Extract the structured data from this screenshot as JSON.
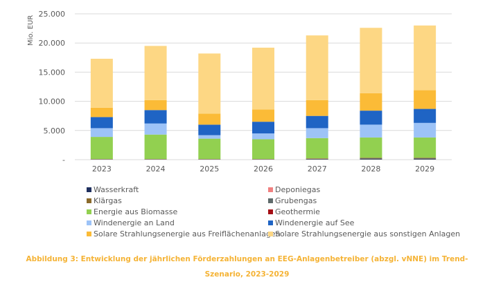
{
  "chart_data": {
    "type": "bar",
    "stacked": true,
    "title": "",
    "xlabel": "",
    "ylabel": "Mio. EUR",
    "ylim": [
      0,
      25000
    ],
    "yticks": [
      0,
      5000,
      10000,
      15000,
      20000,
      25000
    ],
    "ytick_labels": [
      "-",
      "5.000",
      "10.000",
      "15.000",
      "20.000",
      "25.000"
    ],
    "grid": true,
    "legend_position": "bottom",
    "categories": [
      "2023",
      "2024",
      "2025",
      "2026",
      "2027",
      "2028",
      "2029"
    ],
    "series": [
      {
        "name": "Wasserkraft",
        "color": "#1f2f5e",
        "values": [
          30,
          30,
          30,
          30,
          40,
          50,
          50
        ]
      },
      {
        "name": "Deponiegas",
        "color": "#f08080",
        "values": [
          5,
          5,
          5,
          5,
          5,
          5,
          5
        ]
      },
      {
        "name": "Klärgas",
        "color": "#8b6a2b",
        "values": [
          5,
          5,
          5,
          5,
          5,
          5,
          5
        ]
      },
      {
        "name": "Grubengas",
        "color": "#5f6b6b",
        "values": [
          30,
          30,
          30,
          30,
          100,
          200,
          200
        ]
      },
      {
        "name": "Geothermie",
        "color": "#a50f15",
        "values": [
          30,
          30,
          30,
          30,
          50,
          40,
          40
        ]
      },
      {
        "name": "Energie aus Biomasse",
        "color": "#92d050",
        "values": [
          3800,
          4200,
          3500,
          3400,
          3500,
          3500,
          3500
        ]
      },
      {
        "name": "Windenergie an Land",
        "color": "#9dc3f7",
        "values": [
          1500,
          1900,
          600,
          1000,
          1700,
          2200,
          2500
        ]
      },
      {
        "name": "Windenergie auf See",
        "color": "#1f64c4",
        "values": [
          1900,
          2300,
          1800,
          2000,
          2100,
          2400,
          2400
        ]
      },
      {
        "name": "Solare Strahlungsenergie aus Freiflächenanlagen",
        "color": "#fbbb37",
        "values": [
          1600,
          1700,
          1900,
          2100,
          2700,
          3000,
          3200
        ]
      },
      {
        "name": "Solare Strahlungsenergie aus sonstigen Anlagen",
        "color": "#fdd784",
        "values": [
          8400,
          9300,
          10300,
          10600,
          11100,
          11200,
          11100
        ]
      }
    ]
  },
  "legend_order": [
    0,
    1,
    2,
    3,
    5,
    4,
    6,
    7,
    8,
    9
  ],
  "caption": {
    "line1": "Abbildung 3: Entwicklung der jährlichen Förderzahlungen an EEG-Anlagenbetreiber (abzgl. vNNE) im Trend-",
    "line2": "Szenario, 2023-2029"
  },
  "colors": {
    "grid": "#d9d9d9",
    "axis_text": "#595959",
    "caption": "#f5b335"
  }
}
